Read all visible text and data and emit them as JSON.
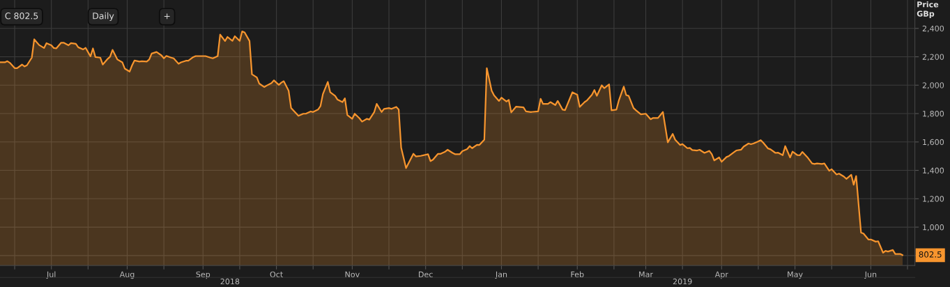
{
  "chart_data": {
    "type": "area",
    "ylabel": "Price\nGBp",
    "series": [
      {
        "color": "#f7952e",
        "x": [
          "2018-06-10",
          "2018-06-12",
          "2018-06-13",
          "2018-06-14",
          "2018-06-16",
          "2018-06-17",
          "2018-06-19",
          "2018-06-20",
          "2018-06-21",
          "2018-06-23",
          "2018-06-24",
          "2018-06-26",
          "2018-06-28",
          "2018-06-29",
          "2018-07-01",
          "2018-07-02",
          "2018-07-03",
          "2018-07-05",
          "2018-07-06",
          "2018-07-08",
          "2018-07-09",
          "2018-07-11",
          "2018-07-12",
          "2018-07-14",
          "2018-07-15",
          "2018-07-17",
          "2018-07-18",
          "2018-07-19",
          "2018-07-21",
          "2018-07-22",
          "2018-07-24",
          "2018-07-25",
          "2018-07-26",
          "2018-07-28",
          "2018-07-30",
          "2018-07-31",
          "2018-08-02",
          "2018-08-03",
          "2018-08-04",
          "2018-08-06",
          "2018-08-07",
          "2018-08-09",
          "2018-08-10",
          "2018-08-11",
          "2018-08-13",
          "2018-08-15",
          "2018-08-16",
          "2018-08-17",
          "2018-08-19",
          "2018-08-20",
          "2018-08-22",
          "2018-08-23",
          "2018-08-25",
          "2018-08-26",
          "2018-08-28",
          "2018-08-29",
          "2018-09-02",
          "2018-09-04",
          "2018-09-05",
          "2018-09-07",
          "2018-09-08",
          "2018-09-10",
          "2018-09-11",
          "2018-09-13",
          "2018-09-14",
          "2018-09-16",
          "2018-09-17",
          "2018-09-18",
          "2018-09-20",
          "2018-09-21",
          "2018-09-23",
          "2018-09-24",
          "2018-09-26",
          "2018-09-27",
          "2018-09-29",
          "2018-09-30",
          "2018-10-02",
          "2018-10-03",
          "2018-10-04",
          "2018-10-06",
          "2018-10-07",
          "2018-10-10",
          "2018-10-12",
          "2018-10-13",
          "2018-10-15",
          "2018-10-16",
          "2018-10-18",
          "2018-10-19",
          "2018-10-20",
          "2018-10-22",
          "2018-10-23",
          "2018-10-25",
          "2018-10-26",
          "2018-10-28",
          "2018-10-29",
          "2018-10-30",
          "2018-11-01",
          "2018-11-02",
          "2018-11-04",
          "2018-11-05",
          "2018-11-07",
          "2018-11-08",
          "2018-11-10",
          "2018-11-11",
          "2018-11-13",
          "2018-11-14",
          "2018-11-16",
          "2018-11-17",
          "2018-11-19",
          "2018-11-20",
          "2018-11-21",
          "2018-11-23",
          "2018-11-26",
          "2018-11-27",
          "2018-11-29",
          "2018-12-02",
          "2018-12-03",
          "2018-12-04",
          "2018-12-06",
          "2018-12-07",
          "2018-12-09",
          "2018-12-10",
          "2018-12-12",
          "2018-12-13",
          "2018-12-15",
          "2018-12-16",
          "2018-12-18",
          "2018-12-19",
          "2018-12-20",
          "2018-12-22",
          "2018-12-23",
          "2018-12-25",
          "2018-12-26",
          "2018-12-28",
          "2018-12-29",
          "2018-12-31",
          "2019-01-01",
          "2019-01-03",
          "2019-01-04",
          "2019-01-05",
          "2019-01-07",
          "2019-01-10",
          "2019-01-11",
          "2019-01-13",
          "2019-01-16",
          "2019-01-17",
          "2019-01-18",
          "2019-01-20",
          "2019-01-21",
          "2019-01-23",
          "2019-01-24",
          "2019-01-26",
          "2019-01-27",
          "2019-01-30",
          "2019-02-01",
          "2019-02-02",
          "2019-02-04",
          "2019-02-05",
          "2019-02-07",
          "2019-02-08",
          "2019-02-09",
          "2019-02-11",
          "2019-02-12",
          "2019-02-14",
          "2019-02-15",
          "2019-02-17",
          "2019-02-18",
          "2019-02-20",
          "2019-02-21",
          "2019-02-22",
          "2019-02-24",
          "2019-02-25",
          "2019-02-27",
          "2019-03-01",
          "2019-03-03",
          "2019-03-04",
          "2019-03-06",
          "2019-03-08",
          "2019-03-10",
          "2019-03-12",
          "2019-03-13",
          "2019-03-15",
          "2019-03-16",
          "2019-03-18",
          "2019-03-19",
          "2019-03-20",
          "2019-03-22",
          "2019-03-23",
          "2019-03-25",
          "2019-03-27",
          "2019-03-28",
          "2019-03-29",
          "2019-03-31",
          "2019-04-01",
          "2019-04-03",
          "2019-04-04",
          "2019-04-06",
          "2019-04-07",
          "2019-04-09",
          "2019-04-10",
          "2019-04-12",
          "2019-04-13",
          "2019-04-14",
          "2019-04-16",
          "2019-04-17",
          "2019-04-18",
          "2019-04-20",
          "2019-04-21",
          "2019-04-23",
          "2019-04-24",
          "2019-04-26",
          "2019-04-27",
          "2019-04-29",
          "2019-04-30",
          "2019-05-02",
          "2019-05-03",
          "2019-05-04",
          "2019-05-06",
          "2019-05-08",
          "2019-05-09",
          "2019-05-10",
          "2019-05-12",
          "2019-05-13",
          "2019-05-15",
          "2019-05-16",
          "2019-05-18",
          "2019-05-19",
          "2019-05-21",
          "2019-05-22",
          "2019-05-24",
          "2019-05-25",
          "2019-05-26",
          "2019-05-28",
          "2019-05-29",
          "2019-05-31",
          "2019-06-01",
          "2019-06-03",
          "2019-06-04",
          "2019-06-06",
          "2019-06-07",
          "2019-06-08",
          "2019-06-10",
          "2019-06-11",
          "2019-06-13",
          "2019-06-14"
        ],
        "values": [
          2161,
          2161,
          2169,
          2158,
          2120,
          2120,
          2145,
          2132,
          2140,
          2194,
          2323,
          2283,
          2262,
          2296,
          2281,
          2262,
          2259,
          2299,
          2299,
          2281,
          2296,
          2291,
          2267,
          2252,
          2263,
          2203,
          2259,
          2198,
          2194,
          2145,
          2185,
          2201,
          2249,
          2181,
          2161,
          2117,
          2096,
          2140,
          2174,
          2166,
          2169,
          2166,
          2181,
          2223,
          2234,
          2210,
          2189,
          2206,
          2194,
          2189,
          2151,
          2161,
          2172,
          2172,
          2198,
          2205,
          2205,
          2194,
          2189,
          2205,
          2356,
          2311,
          2340,
          2312,
          2345,
          2312,
          2379,
          2372,
          2311,
          2077,
          2055,
          2011,
          1987,
          1997,
          2015,
          2034,
          2002,
          2018,
          2028,
          1961,
          1840,
          1784,
          1799,
          1799,
          1815,
          1811,
          1828,
          1852,
          1937,
          2023,
          1950,
          1925,
          1898,
          1881,
          1907,
          1790,
          1763,
          1799,
          1766,
          1743,
          1763,
          1758,
          1811,
          1868,
          1811,
          1833,
          1839,
          1833,
          1847,
          1828,
          1560,
          1416,
          1517,
          1498,
          1502,
          1514,
          1465,
          1475,
          1516,
          1516,
          1532,
          1545,
          1523,
          1514,
          1514,
          1535,
          1550,
          1571,
          1556,
          1580,
          1579,
          1616,
          2120,
          1961,
          1928,
          1889,
          1912,
          1885,
          1896,
          1808,
          1849,
          1844,
          1816,
          1811,
          1816,
          1904,
          1868,
          1868,
          1881,
          1860,
          1889,
          1828,
          1824,
          1950,
          1933,
          1847,
          1881,
          1893,
          1933,
          1966,
          1925,
          1999,
          1979,
          2006,
          1823,
          1828,
          1893,
          1990,
          1930,
          1925,
          1839,
          1823,
          1795,
          1799,
          1760,
          1769,
          1769,
          1811,
          1597,
          1657,
          1616,
          1579,
          1585,
          1556,
          1558,
          1543,
          1540,
          1545,
          1523,
          1537,
          1514,
          1470,
          1491,
          1460,
          1494,
          1501,
          1527,
          1540,
          1546,
          1567,
          1589,
          1584,
          1589,
          1604,
          1613,
          1595,
          1554,
          1548,
          1523,
          1525,
          1507,
          1571,
          1491,
          1532,
          1507,
          1506,
          1530,
          1494,
          1449,
          1445,
          1449,
          1445,
          1449,
          1397,
          1408,
          1371,
          1377,
          1356,
          1340,
          1369,
          1299,
          1360,
          961,
          955,
          913,
          913,
          898,
          901,
          820,
          833,
          828,
          839,
          811,
          811,
          802.5
        ]
      }
    ],
    "xlim": [
      "2018-06-10",
      "2019-06-19"
    ],
    "xticks": [
      {
        "value": "2018-06-16",
        "label": null
      },
      {
        "value": "2018-07-01",
        "label": "Jul"
      },
      {
        "value": "2018-07-16",
        "label": null
      },
      {
        "value": "2018-08-01",
        "label": "Aug"
      },
      {
        "value": "2018-08-16",
        "label": null
      },
      {
        "value": "2018-09-01",
        "label": "Sep"
      },
      {
        "value": "2018-09-16",
        "label": null
      },
      {
        "value": "2018-10-01",
        "label": "Oct"
      },
      {
        "value": "2018-10-16",
        "label": null
      },
      {
        "value": "2018-11-01",
        "label": "Nov"
      },
      {
        "value": "2018-11-16",
        "label": null
      },
      {
        "value": "2018-12-01",
        "label": "Dec"
      },
      {
        "value": "2018-12-16",
        "label": null
      },
      {
        "value": "2019-01-01",
        "label": "Jan"
      },
      {
        "value": "2019-01-16",
        "label": null
      },
      {
        "value": "2019-02-01",
        "label": "Feb"
      },
      {
        "value": "2019-02-16",
        "label": null
      },
      {
        "value": "2019-03-01",
        "label": "Mar"
      },
      {
        "value": "2019-03-16",
        "label": null
      },
      {
        "value": "2019-04-01",
        "label": "Apr"
      },
      {
        "value": "2019-04-16",
        "label": null
      },
      {
        "value": "2019-05-01",
        "label": "May"
      },
      {
        "value": "2019-05-16",
        "label": null
      },
      {
        "value": "2019-06-01",
        "label": "Jun"
      },
      {
        "value": "2019-06-16",
        "label": null
      }
    ],
    "x2lim": [
      "2018-06-10",
      "2019-06-19"
    ],
    "x2ticks": [
      {
        "value": "2018-09-12",
        "label": "2018"
      },
      {
        "value": "2019-03-16",
        "label": "2019"
      }
    ],
    "ylim": [
      730,
      2600
    ],
    "yticks": [
      {
        "value": 800,
        "label": null
      },
      {
        "value": 1000,
        "label": "1,000"
      },
      {
        "value": 1200,
        "label": "1,200"
      },
      {
        "value": 1400,
        "label": "1,400"
      },
      {
        "value": 1600,
        "label": "1,600"
      },
      {
        "value": 1800,
        "label": "1,800"
      },
      {
        "value": 2000,
        "label": "2,000"
      },
      {
        "value": 2200,
        "label": "2,200"
      },
      {
        "value": 2400,
        "label": "2,400"
      }
    ],
    "grid": true,
    "annotations": [
      "C 802.5",
      "Daily",
      "+",
      {
        "text": "802.5",
        "y": 802.5
      }
    ]
  }
}
